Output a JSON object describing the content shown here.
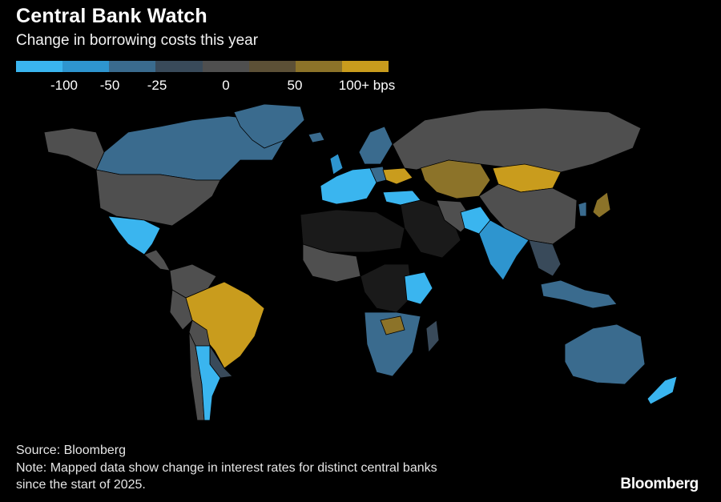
{
  "header": {
    "title": "Central Bank Watch",
    "subtitle": "Change in borrowing costs this year"
  },
  "legend": {
    "swatches": [
      "#3ab5ef",
      "#2e95cf",
      "#3a6b8e",
      "#394a5a",
      "#4f4f4f",
      "#5c5036",
      "#8c7329",
      "#c99c1d"
    ],
    "ticks": [
      "-100",
      "-50",
      "-25",
      "0",
      "50",
      "100+ bps"
    ]
  },
  "palette": {
    "cut_100": "#3ab5ef",
    "cut_50": "#2e95cf",
    "cut_25": "#3a6b8e",
    "cut_small": "#394a5a",
    "no_change": "#4f4f4f",
    "hike_small": "#5c5036",
    "hike_50": "#8c7329",
    "hike_100": "#c99c1d",
    "no_data": "#1a1a1a"
  },
  "footer": {
    "source": "Source: Bloomberg",
    "note_line1": "Note: Mapped data show change in interest rates for distinct central banks",
    "note_line2": "since the start of 2025.",
    "logo": "Bloomberg"
  }
}
